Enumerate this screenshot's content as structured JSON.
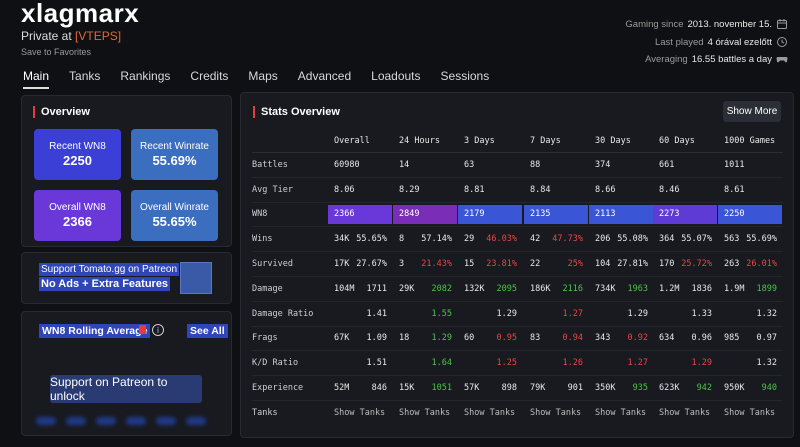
{
  "player": {
    "name": "xlagmarx",
    "private_at": "Private at",
    "clan_tag": "[VTEPS]",
    "save": "Save to Favorites"
  },
  "meta": {
    "since_label": "Gaming since",
    "since_value": "2013. november 15.",
    "played_label": "Last played",
    "played_value": "4 órával ezelőtt",
    "avg_label": "Averaging",
    "avg_value": "16.55 battles a day"
  },
  "tabs": [
    "Main",
    "Tanks",
    "Rankings",
    "Credits",
    "Maps",
    "Advanced",
    "Loadouts",
    "Sessions"
  ],
  "overview": {
    "title": "Overview",
    "cards": [
      {
        "label": "Recent WN8",
        "value": "2250",
        "color": "#3b3fd6"
      },
      {
        "label": "Recent Winrate",
        "value": "55.69%",
        "color": "#3c6ec0"
      },
      {
        "label": "Overall WN8",
        "value": "2366",
        "color": "#6a38d8"
      },
      {
        "label": "Overall Winrate",
        "value": "55.65%",
        "color": "#3c6ec0"
      }
    ]
  },
  "patreon": {
    "link": "Support Tomato.gg on Patreon",
    "sub": "No Ads + Extra Features"
  },
  "rolling": {
    "title": "WN8 Rolling Average",
    "see_all": "See All",
    "unlock": "Support on Patreon to unlock"
  },
  "stats": {
    "title": "Stats Overview",
    "show_more": "Show More",
    "columns": [
      "Overall",
      "24 Hours",
      "3 Days",
      "7 Days",
      "30 Days",
      "60 Days",
      "1000 Games"
    ],
    "battles": [
      "60980",
      "14",
      "63",
      "88",
      "374",
      "661",
      "1011"
    ],
    "avg_tier": [
      "8.06",
      "8.29",
      "8.81",
      "8.84",
      "8.66",
      "8.46",
      "8.61"
    ],
    "wn8": [
      "2366",
      "2849",
      "2179",
      "2135",
      "2113",
      "2273",
      "2250"
    ],
    "wn8_colors": [
      "#6a38d8",
      "#7a2eb8",
      "#3a55d6",
      "#3a55d6",
      "#3a55d6",
      "#5e3bd4",
      "#3a55d6"
    ],
    "wins": [
      {
        "a": "34K",
        "b": "55.65%",
        "c": "white"
      },
      {
        "a": "8",
        "b": "57.14%",
        "c": "white"
      },
      {
        "a": "29",
        "b": "46.03%",
        "c": "red"
      },
      {
        "a": "42",
        "b": "47.73%",
        "c": "red"
      },
      {
        "a": "206",
        "b": "55.08%",
        "c": "white"
      },
      {
        "a": "364",
        "b": "55.07%",
        "c": "white"
      },
      {
        "a": "563",
        "b": "55.69%",
        "c": "white"
      }
    ],
    "survived": [
      {
        "a": "17K",
        "b": "27.67%",
        "c": "white"
      },
      {
        "a": "3",
        "b": "21.43%",
        "c": "red"
      },
      {
        "a": "15",
        "b": "23.81%",
        "c": "red"
      },
      {
        "a": "22",
        "b": "25%",
        "c": "red"
      },
      {
        "a": "104",
        "b": "27.81%",
        "c": "white"
      },
      {
        "a": "170",
        "b": "25.72%",
        "c": "red"
      },
      {
        "a": "263",
        "b": "26.01%",
        "c": "red"
      }
    ],
    "damage": [
      {
        "a": "104M",
        "b": "1711",
        "c": "white"
      },
      {
        "a": "29K",
        "b": "2082",
        "c": "green"
      },
      {
        "a": "132K",
        "b": "2095",
        "c": "green"
      },
      {
        "a": "186K",
        "b": "2116",
        "c": "green"
      },
      {
        "a": "734K",
        "b": "1963",
        "c": "green"
      },
      {
        "a": "1.2M",
        "b": "1836",
        "c": "white"
      },
      {
        "a": "1.9M",
        "b": "1899",
        "c": "green"
      }
    ],
    "damage_ratio": [
      {
        "b": "1.41",
        "c": "white"
      },
      {
        "b": "1.55",
        "c": "green"
      },
      {
        "b": "1.29",
        "c": "white"
      },
      {
        "b": "1.27",
        "c": "red"
      },
      {
        "b": "1.29",
        "c": "white"
      },
      {
        "b": "1.33",
        "c": "white"
      },
      {
        "b": "1.32",
        "c": "white"
      }
    ],
    "frags": [
      {
        "a": "67K",
        "b": "1.09",
        "c": "white"
      },
      {
        "a": "18",
        "b": "1.29",
        "c": "green"
      },
      {
        "a": "60",
        "b": "0.95",
        "c": "red"
      },
      {
        "a": "83",
        "b": "0.94",
        "c": "red"
      },
      {
        "a": "343",
        "b": "0.92",
        "c": "red"
      },
      {
        "a": "634",
        "b": "0.96",
        "c": "white"
      },
      {
        "a": "985",
        "b": "0.97",
        "c": "white"
      }
    ],
    "kd": [
      {
        "b": "1.51",
        "c": "white"
      },
      {
        "b": "1.64",
        "c": "green"
      },
      {
        "b": "1.25",
        "c": "red"
      },
      {
        "b": "1.26",
        "c": "red"
      },
      {
        "b": "1.27",
        "c": "red"
      },
      {
        "b": "1.29",
        "c": "red"
      },
      {
        "b": "1.32",
        "c": "white"
      }
    ],
    "experience": [
      {
        "a": "52M",
        "b": "846",
        "c": "white"
      },
      {
        "a": "15K",
        "b": "1051",
        "c": "green"
      },
      {
        "a": "57K",
        "b": "898",
        "c": "white"
      },
      {
        "a": "79K",
        "b": "901",
        "c": "white"
      },
      {
        "a": "350K",
        "b": "935",
        "c": "green"
      },
      {
        "a": "623K",
        "b": "942",
        "c": "green"
      },
      {
        "a": "950K",
        "b": "940",
        "c": "green"
      }
    ],
    "row_labels": [
      "Battles",
      "Avg Tier",
      "WN8",
      "Wins",
      "Survived",
      "Damage",
      "Damage Ratio",
      "Frags",
      "K/D Ratio",
      "Experience",
      "Tanks"
    ],
    "show_tanks": "Show Tanks"
  }
}
